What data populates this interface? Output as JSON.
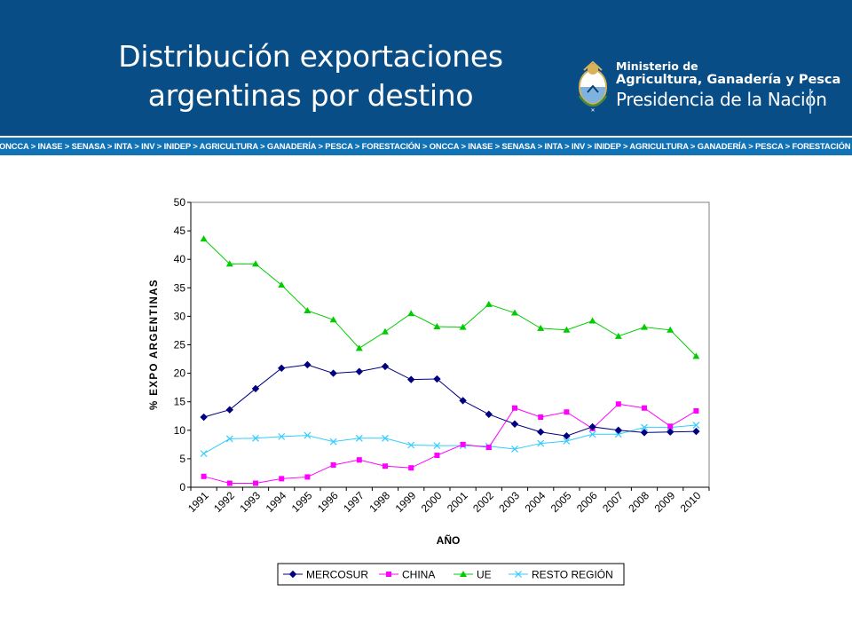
{
  "header": {
    "title_line1": "Distribución exportaciones",
    "title_line2": "argentinas por destino",
    "ministry_line1": "Ministerio de",
    "ministry_line2": "Agricultura, Ganadería y Pesca",
    "presidency": "Presidencia de la Nación",
    "ticker": "ONCCA > INASE > SENASA > INTA > INV > INIDEP > AGRICULTURA > GANADERÍA > PESCA > FORESTACIÓN > ONCCA > INASE > SENASA > INTA > INV > INIDEP > AGRICULTURA > GANADERÍA > PESCA > FORESTACIÓN > ONCCA > INASE > SENASA"
  },
  "colors": {
    "header_bg": "#084d86",
    "ticker_bg": "#1272b6",
    "mercosur": "#000080",
    "china": "#ff00ff",
    "ue": "#00cc00",
    "resto": "#33ccff"
  },
  "chart_data": {
    "type": "line",
    "title": "",
    "xlabel": "AÑO",
    "ylabel": "% EXPO ARGENTINAS",
    "ylim": [
      0,
      50
    ],
    "ytick_step": 5,
    "yticks": [
      "0",
      "5",
      "10",
      "15",
      "20",
      "25",
      "30",
      "35",
      "40",
      "45",
      "50"
    ],
    "grid": false,
    "legend_position": "bottom-center",
    "categories": [
      "1991",
      "1992",
      "1993",
      "1994",
      "1995",
      "1996",
      "1997",
      "1998",
      "1999",
      "2000",
      "2001",
      "2002",
      "2003",
      "2004",
      "2005",
      "2006",
      "2007",
      "2008",
      "2009",
      "2010"
    ],
    "series": [
      {
        "name": "MERCOSUR",
        "marker": "diamond",
        "color": "#000080",
        "values": [
          12.3,
          13.6,
          17.3,
          20.9,
          21.5,
          20.0,
          20.3,
          21.2,
          18.9,
          19.0,
          15.2,
          12.8,
          11.1,
          9.7,
          9.0,
          10.6,
          10.0,
          9.6,
          9.7,
          9.8
        ]
      },
      {
        "name": "CHINA",
        "marker": "square",
        "color": "#ff00ff",
        "values": [
          1.9,
          0.7,
          0.7,
          1.5,
          1.8,
          3.9,
          4.8,
          3.7,
          3.4,
          5.6,
          7.5,
          7.0,
          13.9,
          12.3,
          13.2,
          10.3,
          14.6,
          13.9,
          10.7,
          13.4
        ]
      },
      {
        "name": "UE",
        "marker": "triangle",
        "color": "#00cc00",
        "values": [
          43.6,
          39.2,
          39.2,
          35.5,
          31.0,
          29.4,
          24.4,
          27.3,
          30.5,
          28.2,
          28.1,
          32.1,
          30.6,
          27.9,
          27.6,
          29.2,
          26.5,
          28.1,
          27.6,
          23.0
        ]
      },
      {
        "name": "RESTO REGIÓN",
        "marker": "x",
        "color": "#33ccff",
        "values": [
          5.9,
          8.5,
          8.6,
          8.9,
          9.1,
          8.0,
          8.6,
          8.6,
          7.4,
          7.3,
          7.3,
          7.2,
          6.7,
          7.7,
          8.1,
          9.3,
          9.3,
          10.5,
          10.5,
          10.9
        ]
      }
    ]
  }
}
